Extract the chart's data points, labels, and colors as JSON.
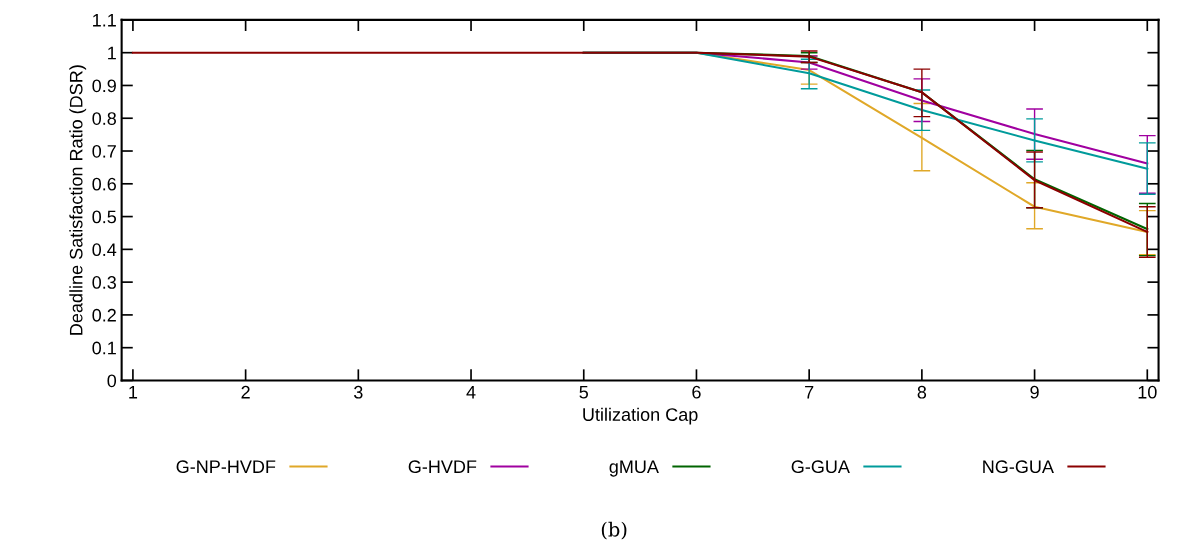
{
  "chart_data": {
    "type": "line",
    "xlabel": "Utilization Cap",
    "ylabel": "Deadline Satisfaction Ratio (DSR)",
    "x": [
      1,
      2,
      3,
      4,
      5,
      6,
      7,
      8,
      9,
      10
    ],
    "xlim": [
      0.9,
      10.1
    ],
    "xticks": [
      1,
      2,
      3,
      4,
      5,
      6,
      7,
      8,
      9,
      10
    ],
    "ylim": [
      0,
      1.1
    ],
    "yticks": [
      0,
      0.1,
      0.2,
      0.3,
      0.4,
      0.5,
      0.6,
      0.7,
      0.8,
      0.9,
      1,
      1.1
    ],
    "series": [
      {
        "name": "G-NP-HVDF",
        "color": "#e0a828",
        "values": [
          null,
          null,
          null,
          null,
          1,
          1,
          0.947,
          0.74,
          0.53,
          0.453
        ],
        "errors": [
          null,
          null,
          null,
          null,
          null,
          null,
          [
            0.904,
            0.99
          ],
          [
            0.64,
            0.845
          ],
          [
            0.463,
            0.603
          ],
          [
            0.384,
            0.518
          ]
        ]
      },
      {
        "name": "G-HVDF",
        "color": "#a000a0",
        "values": [
          null,
          null,
          null,
          null,
          1,
          1,
          0.97,
          0.854,
          0.752,
          0.662
        ],
        "errors": [
          null,
          null,
          null,
          null,
          null,
          null,
          [
            0.95,
            0.99
          ],
          [
            0.79,
            0.92
          ],
          [
            0.675,
            0.828
          ],
          [
            0.571,
            0.747
          ]
        ]
      },
      {
        "name": "gMUA",
        "color": "#006400",
        "values": [
          null,
          null,
          null,
          null,
          1,
          1,
          0.99,
          0.879,
          0.614,
          0.462
        ],
        "errors": [
          null,
          null,
          null,
          null,
          null,
          null,
          [
            0.97,
            1.0
          ],
          null,
          [
            0.527,
            0.702
          ],
          [
            0.381,
            0.54
          ]
        ]
      },
      {
        "name": "G-GUA",
        "color": "#009b9b",
        "values": [
          null,
          null,
          null,
          null,
          1,
          1,
          0.937,
          0.825,
          0.732,
          0.646
        ],
        "errors": [
          null,
          null,
          null,
          null,
          null,
          null,
          [
            0.89,
            0.98
          ],
          [
            0.763,
            0.886
          ],
          [
            0.667,
            0.798
          ],
          [
            0.568,
            0.725
          ]
        ]
      },
      {
        "name": "NG-GUA",
        "color": "#8b0000",
        "values": [
          1,
          1,
          1,
          1,
          1,
          1,
          0.988,
          0.879,
          0.611,
          0.453
        ],
        "errors": [
          null,
          null,
          null,
          null,
          null,
          null,
          [
            0.97,
            1.005
          ],
          [
            0.805,
            0.95
          ],
          [
            0.527,
            0.697
          ],
          [
            0.376,
            0.53
          ]
        ]
      }
    ],
    "legend": "bottom",
    "grid": false,
    "marker": "none",
    "line_style": "solid",
    "annotations": [
      "(b)"
    ]
  }
}
